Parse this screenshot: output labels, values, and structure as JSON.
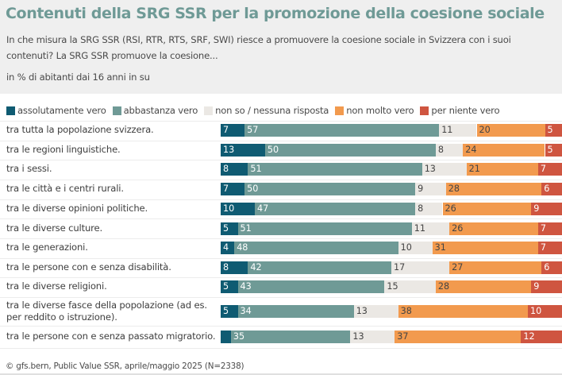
{
  "header": {
    "title": "Contenuti della SRG SSR per la promozione della coesione sociale",
    "subtitle": "In che misura la SRG SSR (RSI, RTR, RTS, SRF, SWI) riesce a promuovere la coesione sociale in Svizzera con i suoi contenuti? La SRG SSR promuove la coesione...",
    "unit": "in % di abitanti dai 16 anni in su"
  },
  "footer": "© gfs.bern, Public Value SSR, aprile/maggio 2025 (N=2338)",
  "colors": {
    "assolutamente_vero": "#0f5b72",
    "abbastanza_vero": "#6f9a96",
    "non_so": "#ebe8e4",
    "non_molto_vero": "#f29a4e",
    "per_niente_vero": "#cf5540"
  },
  "chart_data": {
    "type": "bar",
    "orientation": "horizontal-stacked",
    "title": "Contenuti della SRG SSR per la promozione della coesione sociale",
    "subtitle": "in % di abitanti dai 16 anni in su",
    "xlim": [
      0,
      100
    ],
    "legend_position": "top-left",
    "categories": [
      "tra tutta la popolazione svizzera.",
      "tra le regioni linguistiche.",
      "tra i sessi.",
      "tra le città e i centri rurali.",
      "tra le diverse opinioni politiche.",
      "tra le diverse culture.",
      "tra le generazioni.",
      "tra le persone con e senza disabilità.",
      "tra le diverse religioni.",
      "tra le diverse fasce della popolazione (ad es. per reddito o istruzione).",
      "tra le persone con e senza passato migratorio."
    ],
    "series": [
      {
        "name": "assolutamente vero",
        "color": "#0f5b72",
        "label_color": "#ffffff",
        "values": [
          7,
          13,
          8,
          7,
          10,
          5,
          4,
          8,
          5,
          5,
          3
        ],
        "show_labels": [
          true,
          true,
          true,
          true,
          true,
          true,
          true,
          true,
          true,
          true,
          false
        ]
      },
      {
        "name": "abbastanza vero",
        "color": "#6f9a96",
        "label_color": "#ffffff",
        "values": [
          57,
          50,
          51,
          50,
          47,
          51,
          48,
          42,
          43,
          34,
          35
        ]
      },
      {
        "name": "non so / nessuna risposta",
        "color": "#ebe8e4",
        "label_color": "#444444",
        "values": [
          11,
          8,
          13,
          9,
          8,
          11,
          10,
          17,
          15,
          13,
          13
        ]
      },
      {
        "name": "non molto vero",
        "color": "#f29a4e",
        "label_color": "#444444",
        "values": [
          20,
          24,
          21,
          28,
          26,
          26,
          31,
          27,
          28,
          38,
          37
        ]
      },
      {
        "name": "per niente vero",
        "color": "#cf5540",
        "label_color": "#ffffff",
        "values": [
          5,
          5,
          7,
          6,
          9,
          7,
          7,
          6,
          9,
          10,
          12
        ]
      }
    ]
  }
}
